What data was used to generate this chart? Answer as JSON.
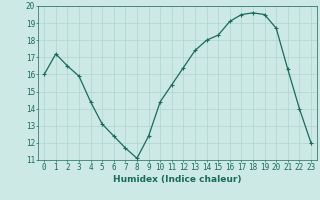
{
  "x": [
    0,
    1,
    2,
    3,
    4,
    5,
    6,
    7,
    8,
    9,
    10,
    11,
    12,
    13,
    14,
    15,
    16,
    17,
    18,
    19,
    20,
    21,
    22,
    23
  ],
  "y": [
    16.0,
    17.2,
    16.5,
    15.9,
    14.4,
    13.1,
    12.4,
    11.7,
    11.1,
    12.4,
    14.4,
    15.4,
    16.4,
    17.4,
    18.0,
    18.3,
    19.1,
    19.5,
    19.6,
    19.5,
    18.7,
    16.3,
    14.0,
    12.0
  ],
  "line_color": "#1a6b5a",
  "marker": "+",
  "marker_size": 3,
  "bg_color": "#cce9e5",
  "grid_color": "#aed4cf",
  "xlabel": "Humidex (Indice chaleur)",
  "ylim": [
    11,
    20
  ],
  "xlim": [
    -0.5,
    23.5
  ],
  "yticks": [
    11,
    12,
    13,
    14,
    15,
    16,
    17,
    18,
    19,
    20
  ],
  "xticks": [
    0,
    1,
    2,
    3,
    4,
    5,
    6,
    7,
    8,
    9,
    10,
    11,
    12,
    13,
    14,
    15,
    16,
    17,
    18,
    19,
    20,
    21,
    22,
    23
  ],
  "tick_color": "#1a6b5a",
  "label_fontsize": 6.5,
  "tick_fontsize": 5.5,
  "linewidth": 0.9
}
